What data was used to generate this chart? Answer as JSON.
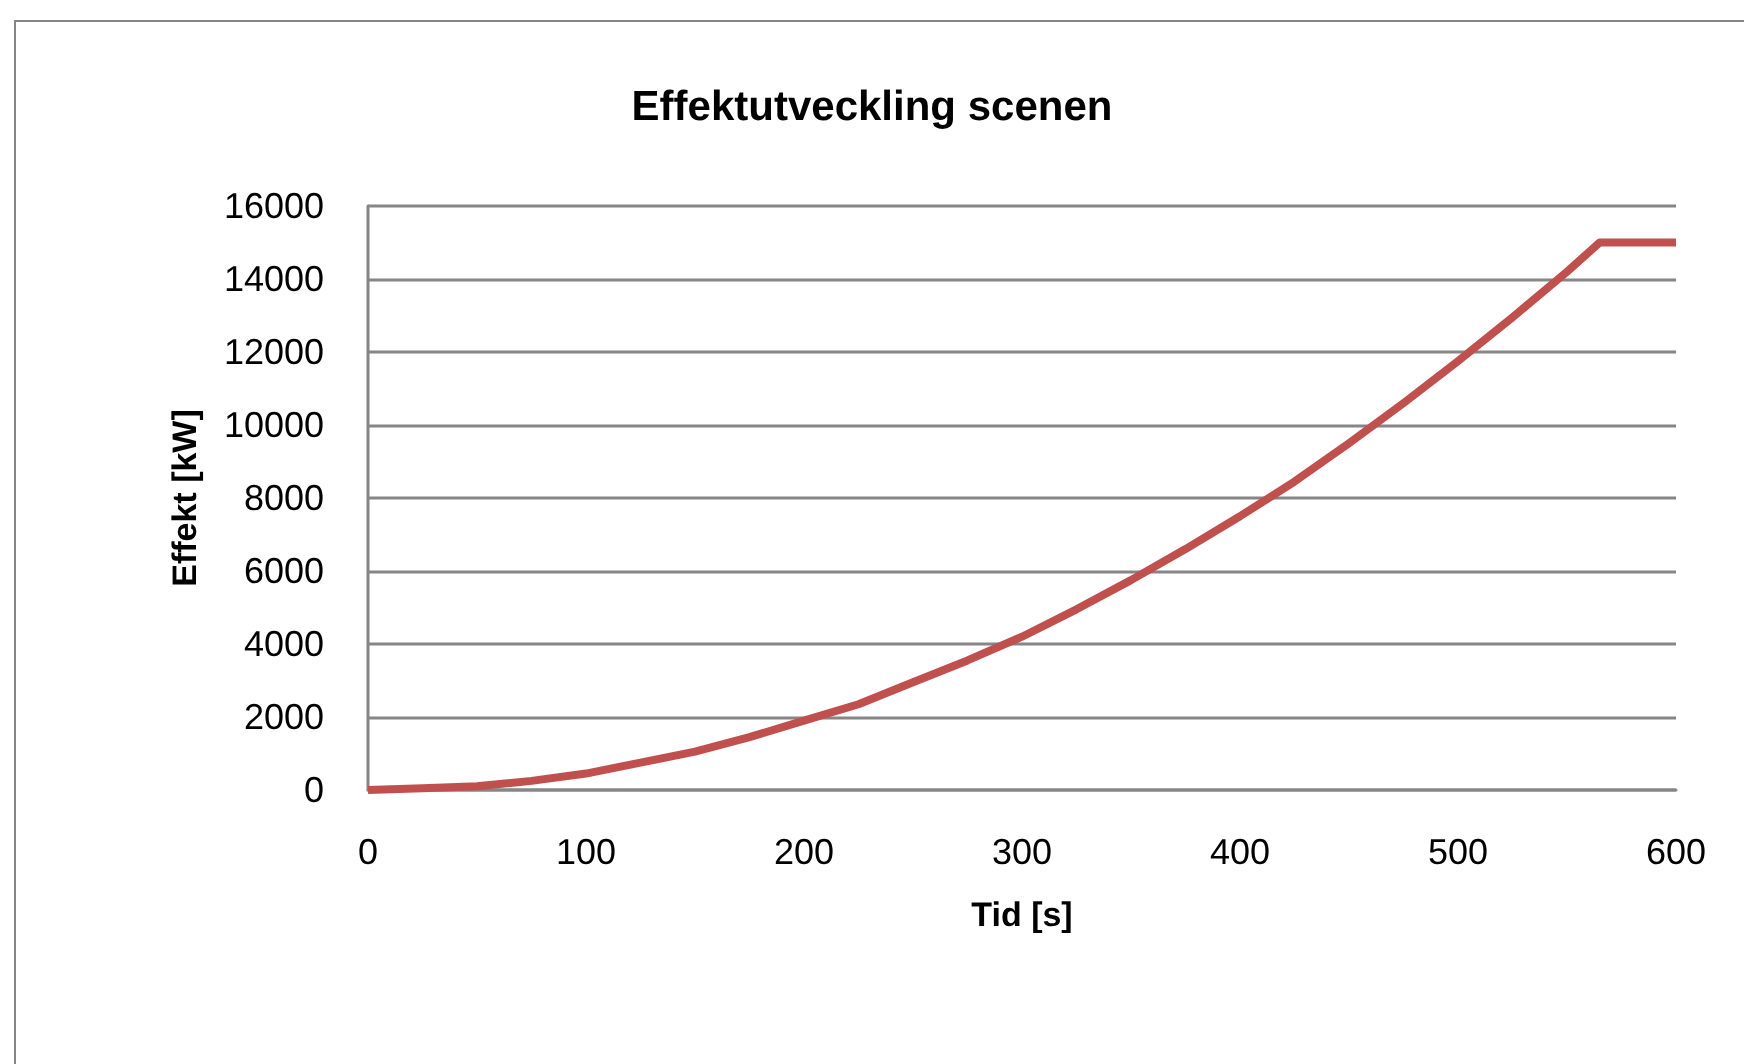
{
  "chart_data": {
    "type": "line",
    "title": "Effektutveckling scenen",
    "xlabel": "Tid [s]",
    "ylabel": "Effekt [kW]",
    "x": [
      0,
      25,
      50,
      75,
      100,
      125,
      150,
      175,
      200,
      225,
      250,
      275,
      300,
      325,
      350,
      375,
      400,
      425,
      450,
      475,
      500,
      525,
      550,
      565,
      600
    ],
    "series": [
      {
        "color": "#c0504d",
        "values": [
          0,
          50,
          100,
          250,
          450,
          750,
          1050,
          1450,
          1900,
          2350,
          2950,
          3550,
          4200,
          4950,
          5750,
          6600,
          7500,
          8450,
          9500,
          10600,
          11750,
          12950,
          14200,
          15000,
          15000
        ]
      }
    ],
    "xlim": [
      0,
      600
    ],
    "ylim": [
      0,
      16000
    ],
    "xticks": [
      0,
      100,
      200,
      300,
      400,
      500,
      600
    ],
    "yticks": [
      0,
      2000,
      4000,
      6000,
      8000,
      10000,
      12000,
      14000,
      16000
    ],
    "grid": "y",
    "marker": "none",
    "line_style": "solid"
  }
}
